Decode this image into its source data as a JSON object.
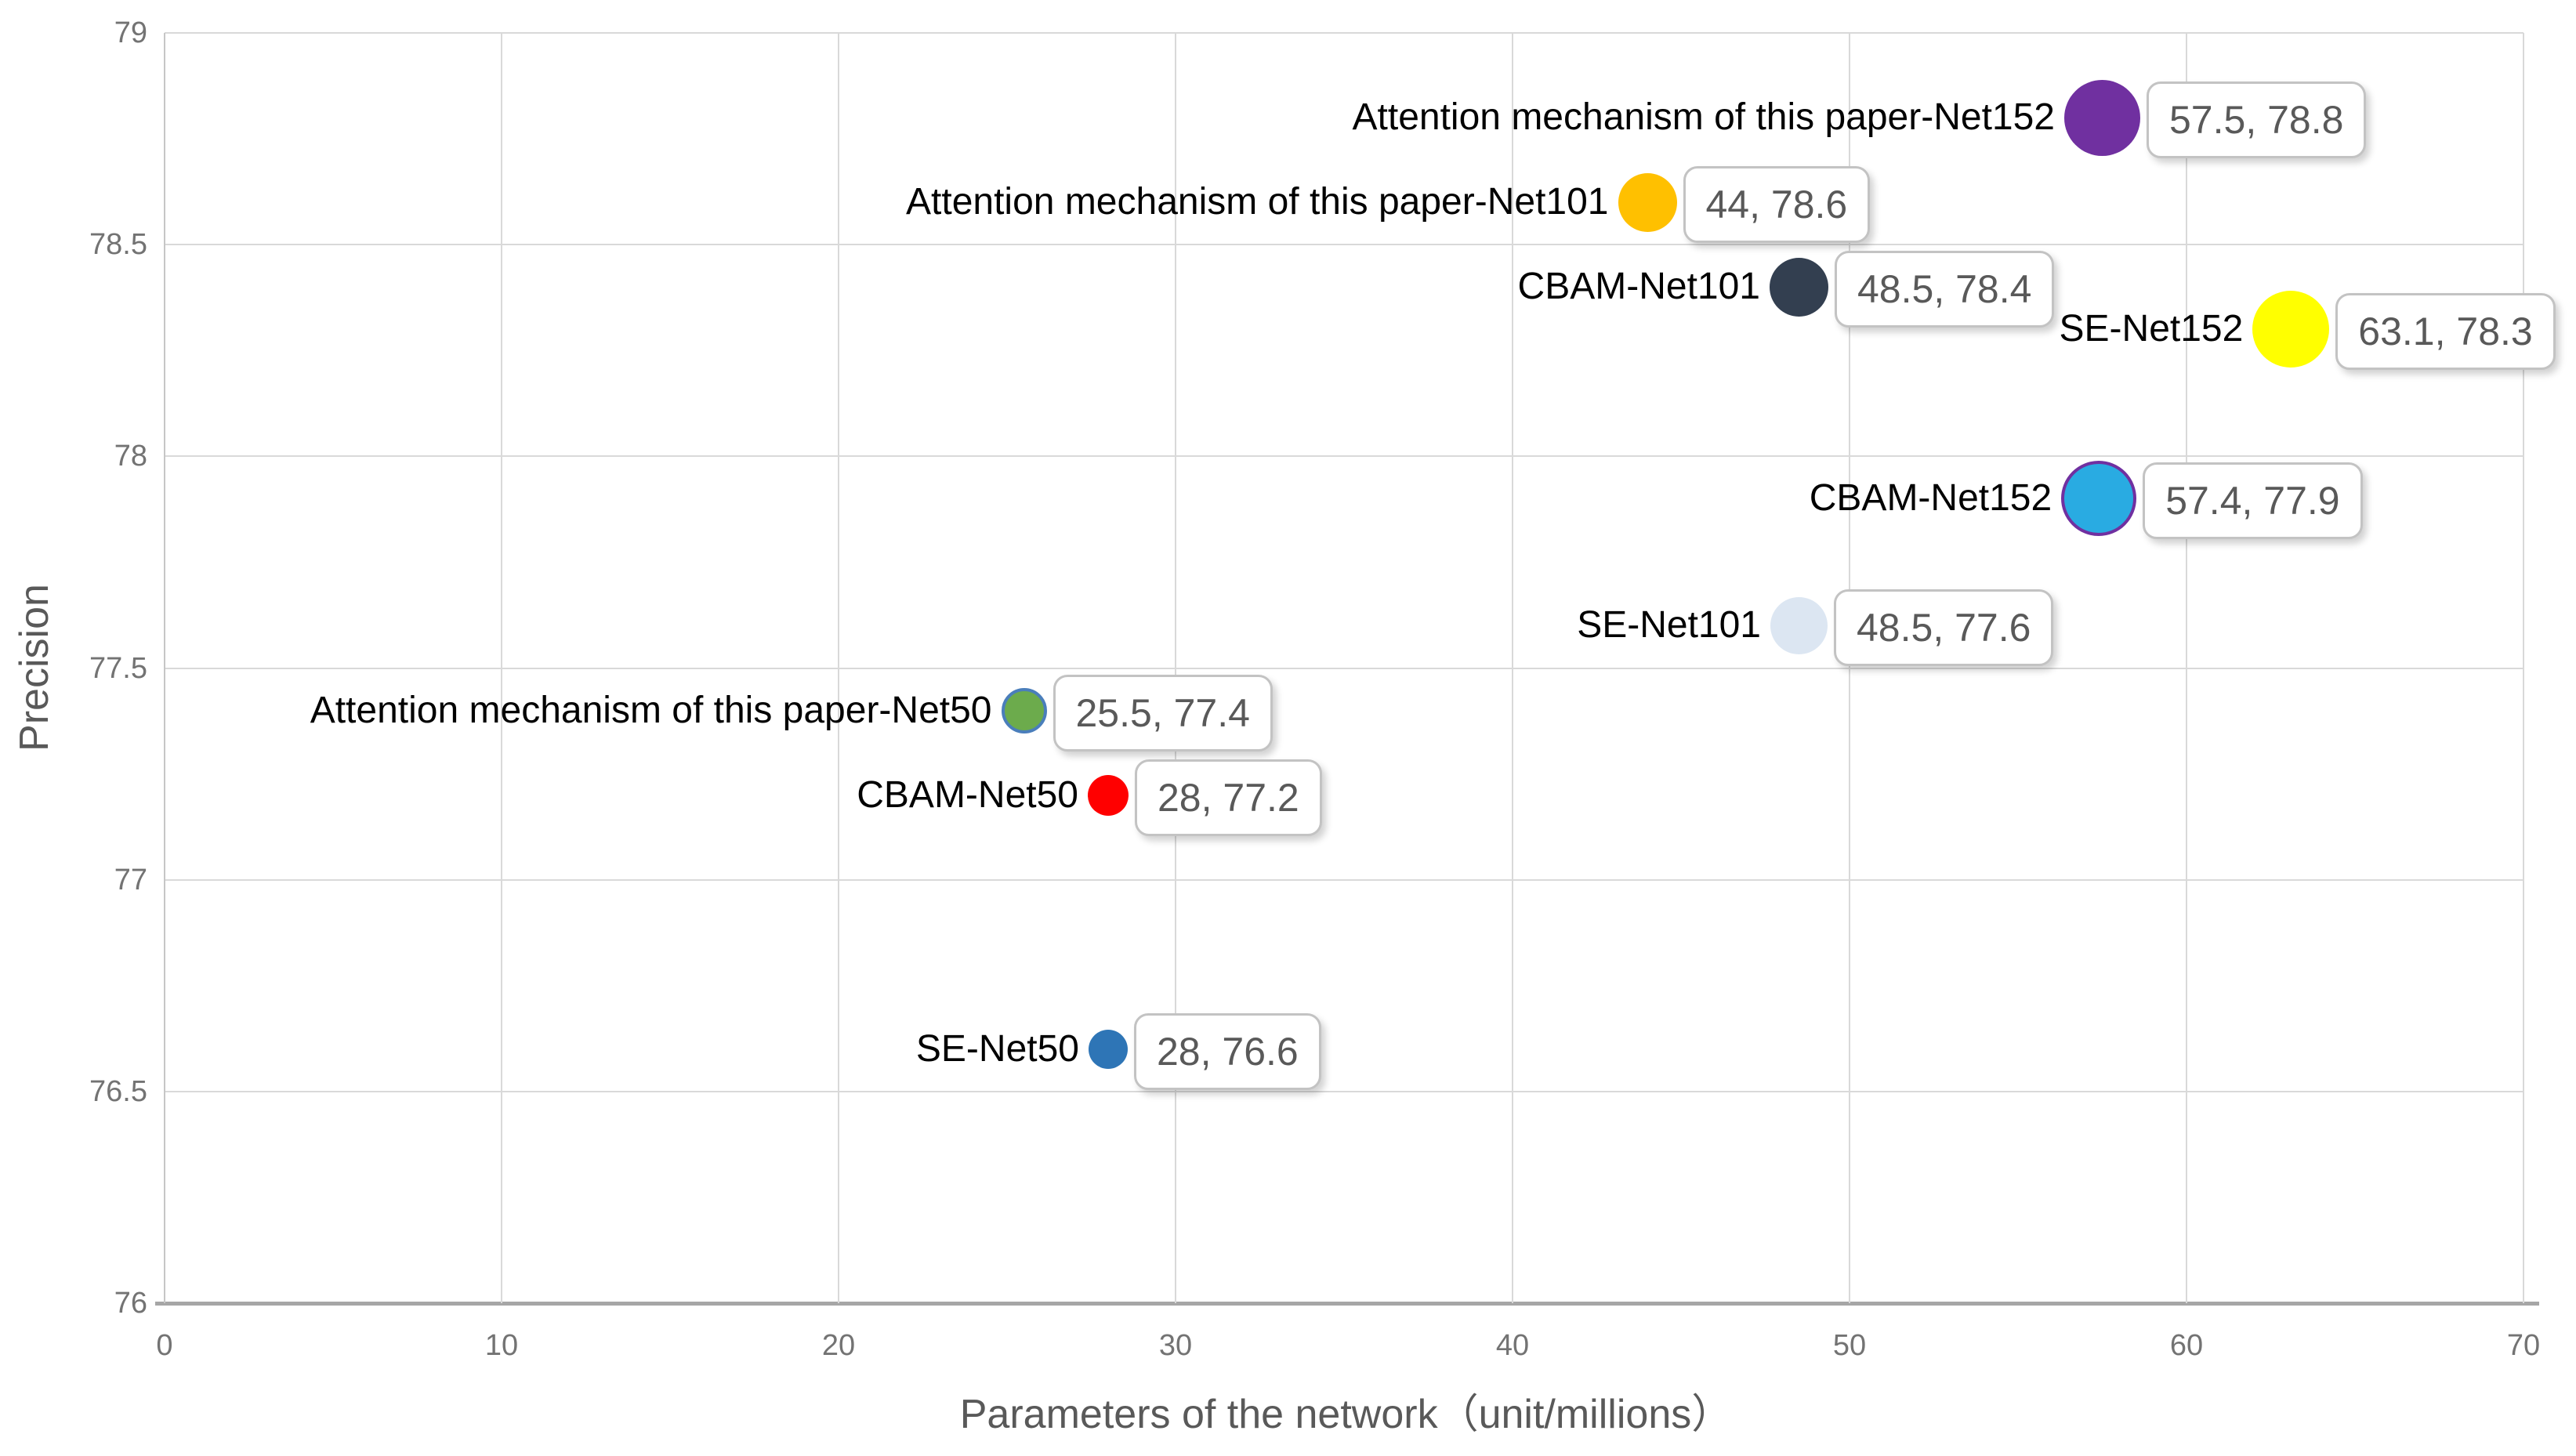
{
  "chart_data": {
    "type": "scatter",
    "title": "",
    "xlabel": "Parameters of the network（unit/millions）",
    "ylabel": "Precision",
    "xlim": [
      0,
      70
    ],
    "ylim": [
      76,
      79
    ],
    "grid": true,
    "legend_position": "none",
    "x_ticks": [
      {
        "v": 0,
        "label": "0"
      },
      {
        "v": 10,
        "label": "10"
      },
      {
        "v": 20,
        "label": "20"
      },
      {
        "v": 30,
        "label": "30"
      },
      {
        "v": 40,
        "label": "40"
      },
      {
        "v": 50,
        "label": "50"
      },
      {
        "v": 60,
        "label": "60"
      },
      {
        "v": 70,
        "label": "70"
      }
    ],
    "y_ticks": [
      {
        "v": 76,
        "label": "76"
      },
      {
        "v": 76.5,
        "label": "76.5"
      },
      {
        "v": 77,
        "label": "77"
      },
      {
        "v": 77.5,
        "label": "77.5"
      },
      {
        "v": 78,
        "label": "78"
      },
      {
        "v": 78.5,
        "label": "78.5"
      },
      {
        "v": 79,
        "label": "79"
      }
    ],
    "points": [
      {
        "name": "Attention mechanism of this paper-Net152",
        "x": 57.5,
        "y": 78.8,
        "value_label": "57.5, 78.8",
        "color": "#7030A0",
        "border_color": "",
        "diameter": 97
      },
      {
        "name": "Attention mechanism of this paper-Net101",
        "x": 44,
        "y": 78.6,
        "value_label": "44, 78.6",
        "color": "#FFC000",
        "border_color": "",
        "diameter": 75
      },
      {
        "name": "CBAM-Net101",
        "x": 48.5,
        "y": 78.4,
        "value_label": "48.5, 78.4",
        "color": "#333F50",
        "border_color": "",
        "diameter": 75
      },
      {
        "name": "SE-Net152",
        "x": 63.1,
        "y": 78.3,
        "value_label": "63.1, 78.3",
        "color": "#FFFF00",
        "border_color": "",
        "diameter": 98
      },
      {
        "name": "CBAM-Net152",
        "x": 57.4,
        "y": 77.9,
        "value_label": "57.4, 77.9",
        "color": "#29ABE2",
        "border_color": "#7030A0",
        "diameter": 96
      },
      {
        "name": "SE-Net101",
        "x": 48.5,
        "y": 77.6,
        "value_label": "48.5, 77.6",
        "color": "#DCE6F2",
        "border_color": "",
        "diameter": 73
      },
      {
        "name": "Attention mechanism of this paper-Net50",
        "x": 25.5,
        "y": 77.4,
        "value_label": "25.5, 77.4",
        "color": "#6CAB4C",
        "border_color": "#4A7EBB",
        "diameter": 58
      },
      {
        "name": "CBAM-Net50",
        "x": 28,
        "y": 77.2,
        "value_label": "28, 77.2",
        "color": "#FF0000",
        "border_color": "",
        "diameter": 52
      },
      {
        "name": "SE-Net50",
        "x": 28,
        "y": 76.6,
        "value_label": "28, 76.6",
        "color": "#2E75B6",
        "border_color": "",
        "diameter": 50
      }
    ]
  },
  "styles": {
    "background": "#FFFFFF",
    "gridline_color": "#D9D9D9",
    "bottom_axis_color": "#A6A6A6",
    "left_axis_color": "#C6C6C6",
    "tick_label_color": "#737373",
    "axis_title_color": "#595959",
    "name_label_color": "#000000",
    "callout_bg": "#FFFFFF",
    "callout_border": "#C3C3C3",
    "callout_text": "#595959"
  }
}
